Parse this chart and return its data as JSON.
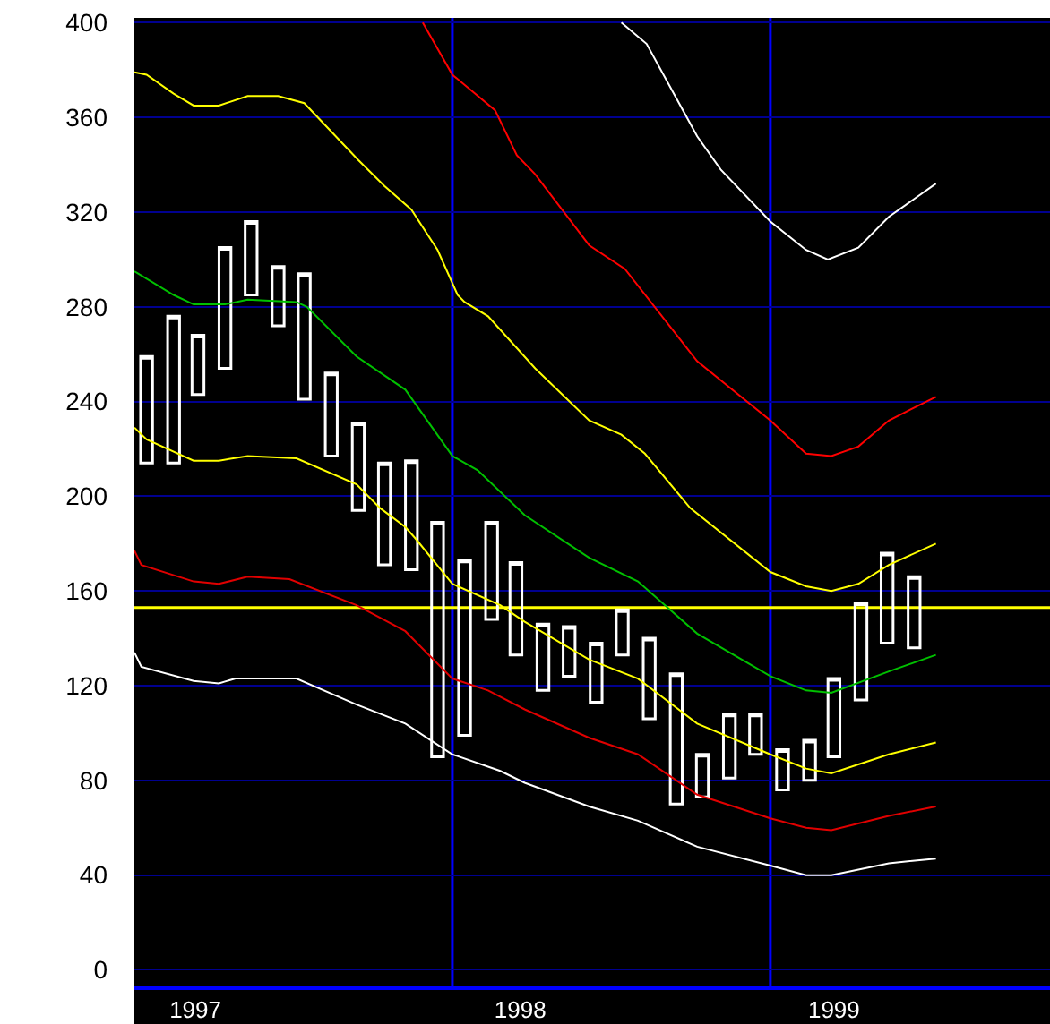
{
  "chart_data": {
    "type": "candlestick",
    "color": "#ffffff",
    "x": [
      "1997-01-15",
      "1997-02-15",
      "1997-03-15",
      "1997-04-15",
      "1997-05-15",
      "1997-06-15",
      "1997-07-15",
      "1997-08-15",
      "1997-09-15",
      "1997-10-15",
      "1997-11-15",
      "1997-12-15",
      "1998-01-15",
      "1998-02-15",
      "1998-03-15",
      "1998-04-15",
      "1998-05-15",
      "1998-06-15",
      "1998-07-15",
      "1998-08-15",
      "1998-09-15",
      "1998-10-15",
      "1998-11-15",
      "1998-12-15",
      "1999-01-15",
      "1999-02-15",
      "1999-03-15",
      "1999-04-15",
      "1999-05-15",
      "1999-06-15"
    ],
    "ohlc": [
      [
        214,
        259,
        214,
        259
      ],
      [
        214,
        276,
        214,
        276
      ],
      [
        243,
        268,
        243,
        268
      ],
      [
        254,
        305,
        254,
        305
      ],
      [
        285,
        316,
        285,
        316
      ],
      [
        272,
        297,
        272,
        297
      ],
      [
        241,
        294,
        241,
        294
      ],
      [
        217,
        252,
        217,
        252
      ],
      [
        194,
        231,
        194,
        231
      ],
      [
        171,
        214,
        171,
        214
      ],
      [
        169,
        215,
        169,
        215
      ],
      [
        90,
        189,
        90,
        189
      ],
      [
        99,
        173,
        99,
        173
      ],
      [
        148,
        189,
        148,
        189
      ],
      [
        133,
        172,
        133,
        172
      ],
      [
        118,
        146,
        118,
        146
      ],
      [
        124,
        145,
        124,
        145
      ],
      [
        113,
        138,
        113,
        138
      ],
      [
        133,
        152,
        133,
        152
      ],
      [
        106,
        140,
        106,
        140
      ],
      [
        70,
        125,
        70,
        125
      ],
      [
        73,
        91,
        73,
        91
      ],
      [
        81,
        108,
        81,
        108
      ],
      [
        91,
        108,
        91,
        108
      ],
      [
        76,
        93,
        76,
        93
      ],
      [
        80,
        97,
        80,
        97
      ],
      [
        90,
        123,
        90,
        123
      ],
      [
        114,
        155,
        114,
        155
      ],
      [
        138,
        176,
        138,
        176
      ],
      [
        136,
        166,
        136,
        166
      ]
    ],
    "series": [
      {
        "type": "line",
        "color": "#ffffff",
        "x": [
          "1998-07-14",
          "1998-08-12",
          "1998-10-09",
          "1998-11-05",
          "1999-01-01",
          "1999-02-11",
          "1999-03-08",
          "1999-04-12",
          "1999-05-17",
          "1999-07-10"
        ],
        "values": [
          400,
          391,
          352,
          338,
          316,
          304,
          300,
          305,
          318,
          332
        ]
      },
      {
        "type": "line",
        "color": "#ff0000",
        "x": [
          "1997-11-28",
          "1998-01-01",
          "1998-02-19",
          "1998-03-16",
          "1998-04-06",
          "1998-06-07",
          "1998-07-18",
          "1998-10-09",
          "1999-01-01",
          "1999-02-11",
          "1999-03-12",
          "1999-04-12",
          "1999-05-17",
          "1999-07-10"
        ],
        "values": [
          400,
          378,
          363,
          344,
          336,
          306,
          296,
          257,
          232,
          218,
          217,
          221,
          232,
          242
        ]
      },
      {
        "type": "line",
        "color": "#ffff00",
        "x": [
          "1997-01-01",
          "1997-01-15",
          "1997-02-15",
          "1997-03-10",
          "1997-04-08",
          "1997-05-11",
          "1997-06-15",
          "1997-07-15",
          "1997-08-15",
          "1997-09-15",
          "1997-10-15",
          "1997-11-15",
          "1997-12-15",
          "1998-01-07",
          "1998-01-15",
          "1998-02-11",
          "1998-04-06",
          "1998-06-07",
          "1998-07-14",
          "1998-08-10",
          "1998-10-01",
          "1999-01-01",
          "1999-02-11",
          "1999-03-12",
          "1999-04-12",
          "1999-05-17",
          "1999-07-10"
        ],
        "values": [
          379,
          378,
          370,
          365,
          365,
          369,
          369,
          366,
          354,
          342,
          331,
          321,
          304,
          285,
          282,
          276,
          254,
          232,
          226,
          218,
          195,
          168,
          162,
          160,
          163,
          171,
          180
        ]
      },
      {
        "type": "line",
        "color": "#00c000",
        "x": [
          "1997-01-01",
          "1997-02-15",
          "1997-03-10",
          "1997-04-15",
          "1997-05-11",
          "1997-07-06",
          "1997-07-18",
          "1997-09-13",
          "1997-11-08",
          "1998-01-01",
          "1998-01-30",
          "1998-03-25",
          "1998-06-07",
          "1998-08-02",
          "1998-10-09",
          "1999-01-01",
          "1999-02-11",
          "1999-03-12",
          "1999-05-17",
          "1999-07-10"
        ],
        "values": [
          295,
          285,
          281,
          281,
          283,
          282,
          280,
          259,
          245,
          217,
          211,
          192,
          174,
          164,
          142,
          124,
          118,
          117,
          126,
          133
        ]
      },
      {
        "type": "line",
        "color": "#ffff00",
        "x": [
          "1997-01-01",
          "1997-01-15",
          "1997-03-10",
          "1997-04-08",
          "1997-05-11",
          "1997-07-06",
          "1997-09-13",
          "1997-10-10",
          "1997-11-08",
          "1997-11-20",
          "1998-01-01",
          "1998-02-25",
          "1998-03-25",
          "1998-06-07",
          "1998-08-02",
          "1998-10-09",
          "1999-01-01",
          "1999-02-11",
          "1999-03-12",
          "1999-05-17",
          "1999-07-10"
        ],
        "values": [
          229,
          224,
          215,
          215,
          217,
          216,
          205,
          195,
          187,
          182,
          163,
          154,
          147,
          131,
          123,
          104,
          91,
          85,
          83,
          91,
          96
        ]
      },
      {
        "type": "line",
        "color": "#e00000",
        "x": [
          "1997-01-01",
          "1997-01-09",
          "1997-03-10",
          "1997-04-08",
          "1997-05-11",
          "1997-06-28",
          "1997-09-13",
          "1997-11-08",
          "1998-01-01",
          "1998-02-11",
          "1998-03-25",
          "1998-06-07",
          "1998-08-02",
          "1998-10-09",
          "1999-01-01",
          "1999-02-11",
          "1999-03-12",
          "1999-05-17",
          "1999-07-10"
        ],
        "values": [
          177,
          171,
          164,
          163,
          166,
          165,
          154,
          143,
          123,
          118,
          110,
          98,
          91,
          74,
          64,
          60,
          59,
          65,
          69
        ]
      },
      {
        "type": "line",
        "color": "#ffffff",
        "x": [
          "1997-01-01",
          "1997-01-09",
          "1997-03-10",
          "1997-04-08",
          "1997-04-27",
          "1997-07-06",
          "1997-09-13",
          "1997-11-08",
          "1998-01-01",
          "1998-02-25",
          "1998-03-25",
          "1998-06-07",
          "1998-08-02",
          "1998-10-09",
          "1999-01-01",
          "1999-02-11",
          "1999-03-12",
          "1999-05-17",
          "1999-07-10"
        ],
        "values": [
          134,
          128,
          122,
          121,
          123,
          123,
          112,
          104,
          91,
          84,
          79,
          69,
          63,
          52,
          44,
          40,
          40,
          45,
          47
        ]
      }
    ],
    "xlim": [
      "1997-01-01",
      "1999-11-18"
    ],
    "xticks": [
      {
        "value": "1997-03-12",
        "label": "1997"
      },
      {
        "value": "1998-03-20",
        "label": "1998"
      },
      {
        "value": "1999-03-15",
        "label": "1999"
      }
    ],
    "ylim": [
      -7,
      402
    ],
    "yticks": [
      0,
      40,
      80,
      120,
      160,
      200,
      240,
      280,
      320,
      360,
      400
    ],
    "grid": "y",
    "ref_lines": [
      {
        "axis": "x",
        "value": "1998-01-01",
        "color": "#0000ff"
      },
      {
        "axis": "x",
        "value": "1999-01-01",
        "color": "#0000ff"
      },
      {
        "axis": "y",
        "value": 153,
        "color": "#ffff00"
      }
    ]
  }
}
